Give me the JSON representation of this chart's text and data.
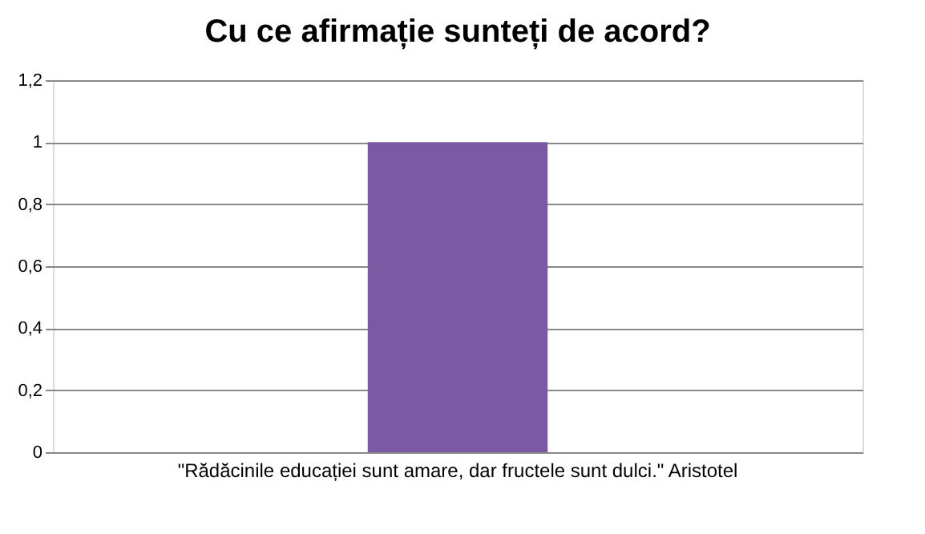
{
  "chart_data": {
    "type": "bar",
    "title": "Cu ce afirmație sunteți de acord?",
    "categories": [
      "\"Rădăcinile educației sunt amare, dar fructele sunt dulci.\" Aristotel"
    ],
    "values": [
      1
    ],
    "color": "#7b59a3",
    "ylim": [
      0,
      1.2
    ],
    "yticks": [
      0,
      {
        "value": 0.2,
        "label": "0,2"
      },
      {
        "value": 0.4,
        "label": "0,4"
      },
      {
        "value": 0.6,
        "label": "0,6"
      },
      {
        "value": 0.8,
        "label": "0,8"
      },
      1,
      {
        "value": 1.2,
        "label": "1,2"
      }
    ],
    "grid": "y"
  }
}
